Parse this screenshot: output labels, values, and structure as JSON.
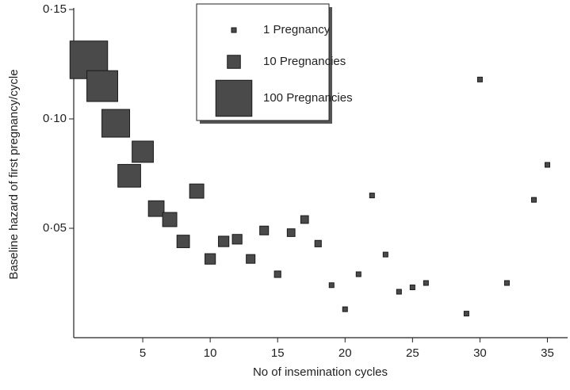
{
  "chart_data": {
    "type": "scatter",
    "marker": "square",
    "x_label": "No of insemination cycles",
    "y_label": "Baseline hazard of first pregnancy/cycle",
    "x": [
      1,
      2,
      3,
      4,
      5,
      6,
      7,
      8,
      9,
      10,
      11,
      12,
      13,
      14,
      15,
      16,
      17,
      18,
      19,
      20,
      21,
      22,
      23,
      24,
      25,
      26,
      29,
      30,
      32,
      34,
      35
    ],
    "values": [
      0.127,
      0.115,
      0.098,
      0.074,
      0.085,
      0.059,
      0.054,
      0.044,
      0.067,
      0.036,
      0.044,
      0.045,
      0.036,
      0.049,
      0.029,
      0.048,
      0.054,
      0.043,
      0.024,
      0.013,
      0.029,
      0.065,
      0.038,
      0.021,
      0.023,
      0.025,
      0.011,
      0.118,
      0.025,
      0.063,
      0.079
    ],
    "sizes": [
      110,
      70,
      55,
      35,
      30,
      15,
      12,
      9,
      12,
      6,
      6,
      5,
      4,
      4,
      2,
      3,
      3,
      2,
      1,
      1,
      1,
      1,
      1,
      1,
      1,
      1,
      1,
      1,
      1,
      1,
      1
    ],
    "color": "#4a4a4a",
    "xlim": [
      0,
      36.5
    ],
    "ylim": [
      0,
      0.15
    ],
    "xticks": [
      5,
      10,
      15,
      20,
      25,
      30,
      35
    ],
    "yticks": [
      {
        "value": 0.05,
        "label": "0·05"
      },
      {
        "value": 0.1,
        "label": "0·10"
      },
      {
        "value": 0.15,
        "label": "0·15"
      }
    ],
    "size_legend": [
      {
        "value": 1,
        "label": "1 Pregnancy"
      },
      {
        "value": 10,
        "label": "10 Pregnancies"
      },
      {
        "value": 100,
        "label": "100 Pregnancies"
      }
    ]
  }
}
